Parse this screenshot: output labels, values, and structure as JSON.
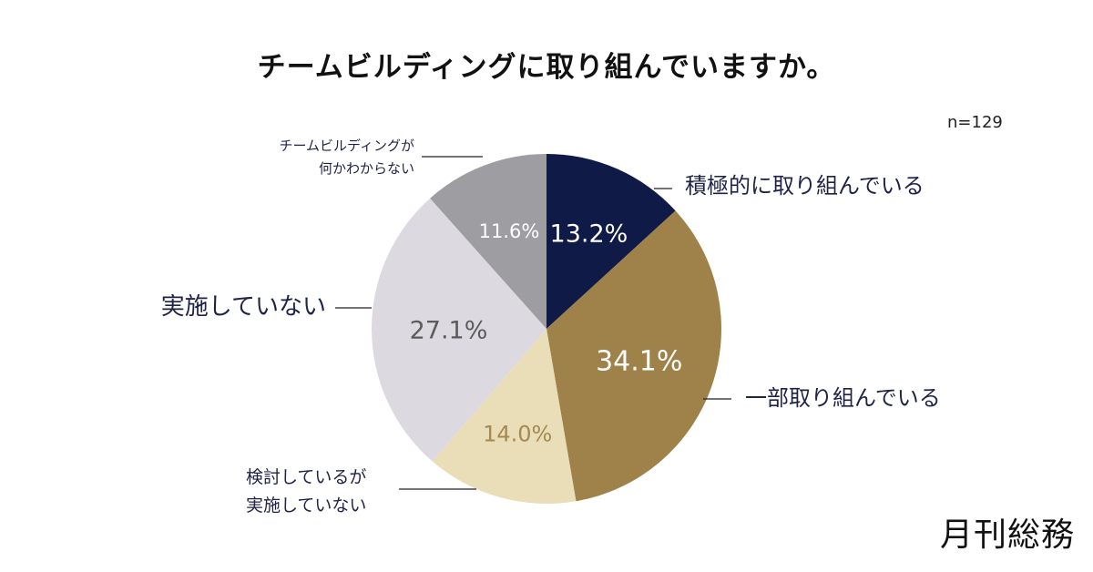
{
  "title": "チームビルディングに取り組んでいますか。",
  "sample_size": "n=129",
  "brand": "月刊総務",
  "chart_data": {
    "type": "pie",
    "slices": [
      {
        "label_lines": [
          "積極的に取り組んでいる"
        ],
        "value": 13.2,
        "display": "13.2%",
        "color": "#101a47",
        "label_color": "#ffffff"
      },
      {
        "label_lines": [
          "一部取り組んでいる"
        ],
        "value": 34.1,
        "display": "34.1%",
        "color": "#9f814a",
        "label_color": "#ffffff"
      },
      {
        "label_lines": [
          "検討しているが",
          "実施していない"
        ],
        "value": 14.0,
        "display": "14.0%",
        "color": "#e9deb7",
        "label_color": "#a58852"
      },
      {
        "label_lines": [
          "実施していない"
        ],
        "value": 27.1,
        "display": "27.1%",
        "color": "#dcdae0",
        "label_color": "#5b5b5b"
      },
      {
        "label_lines": [
          "チームビルディングが",
          "何かわからない"
        ],
        "value": 11.6,
        "display": "11.6%",
        "color": "#9e9ea2",
        "label_color": "#ffffff"
      }
    ]
  }
}
